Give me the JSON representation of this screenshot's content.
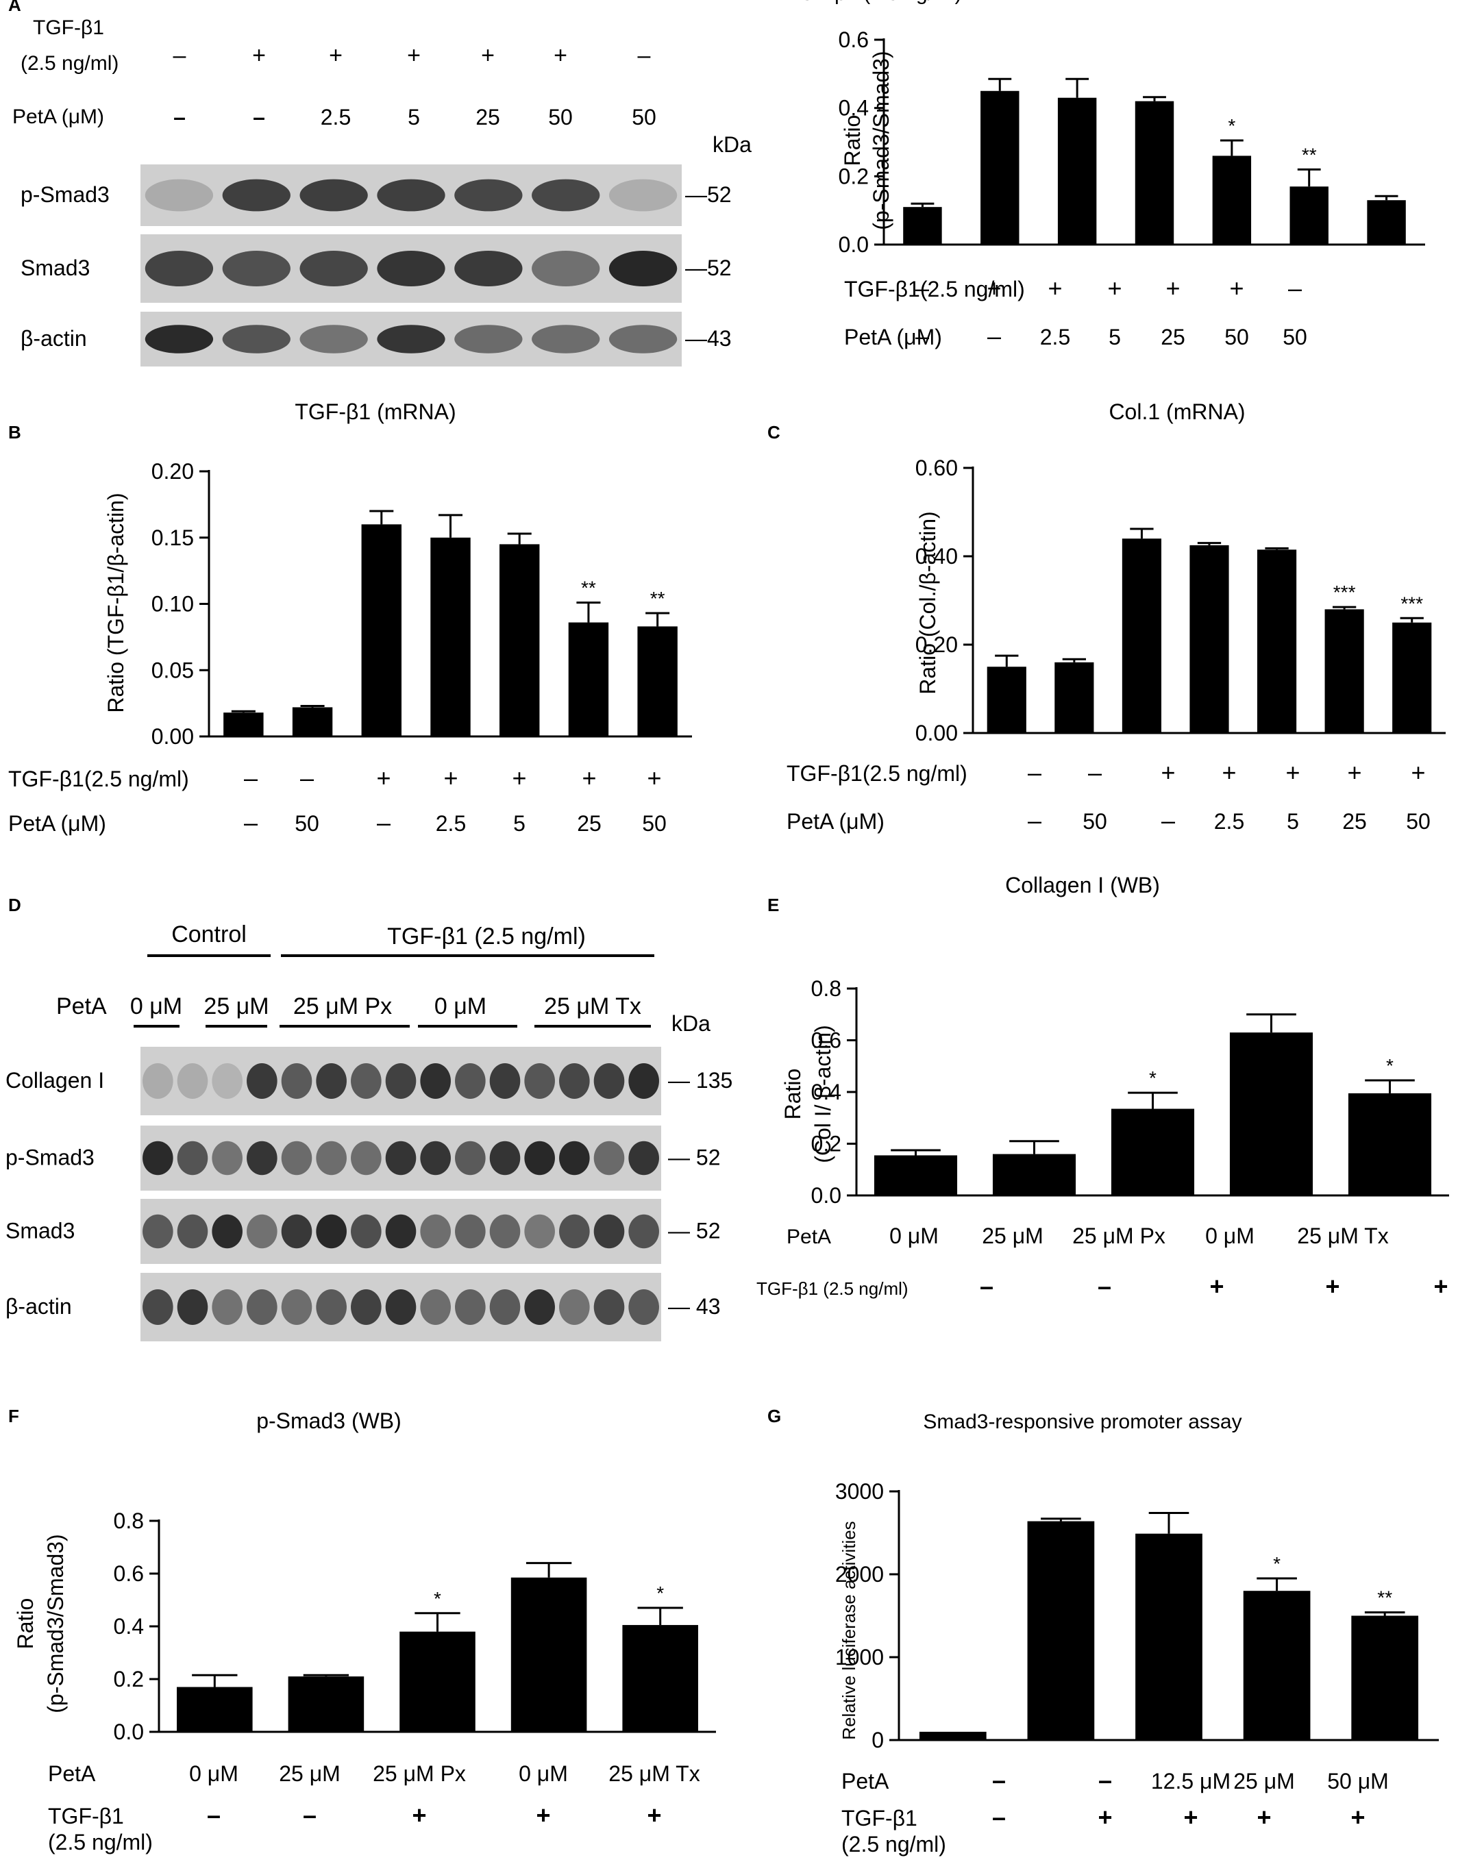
{
  "chart_data": [
    {
      "panel": "A",
      "type": "bar",
      "title": "",
      "ylabel": [
        "Ratio",
        "(p-Smad3/Smad3)"
      ],
      "ylim": [
        0,
        0.6
      ],
      "yticks": [
        "0.0",
        "0.2",
        "0.4",
        "0.6"
      ],
      "values": [
        0.11,
        0.45,
        0.43,
        0.42,
        0.26,
        0.17,
        0.13
      ],
      "errors": [
        0.01,
        0.035,
        0.055,
        0.012,
        0.045,
        0.05,
        0.012
      ],
      "significance": [
        "",
        "",
        "",
        "",
        "*",
        "**",
        ""
      ],
      "conditions": [
        {
          "label": "TGF-β1(2.5 ng/ml)",
          "values": [
            "–",
            "+",
            "+",
            "+",
            "+",
            "+",
            "–"
          ]
        },
        {
          "label": "PetA  (μM)",
          "values": [
            "–",
            "–",
            "2.5",
            "5",
            "25",
            "50",
            "50"
          ]
        }
      ]
    },
    {
      "panel": "B",
      "type": "bar",
      "title": "TGF-β1 (mRNA)",
      "ylabel": [
        "Ratio (TGF-β1/β-actin)"
      ],
      "ylim": [
        0,
        0.2
      ],
      "yticks": [
        "0.00",
        "0.05",
        "0.10",
        "0.15",
        "0.20"
      ],
      "values": [
        0.018,
        0.022,
        0.16,
        0.15,
        0.145,
        0.086,
        0.083
      ],
      "errors": [
        0.001,
        0.001,
        0.01,
        0.017,
        0.008,
        0.015,
        0.01
      ],
      "significance": [
        "",
        "",
        "",
        "",
        "",
        "**",
        "**"
      ],
      "conditions": [
        {
          "label": "TGF-β1(2.5 ng/ml)",
          "values": [
            "–",
            "–",
            "+",
            "+",
            "+",
            "+",
            "+"
          ]
        },
        {
          "label": "PetA  (μM)",
          "values": [
            "–",
            "50",
            "–",
            "2.5",
            "5",
            "25",
            "50"
          ]
        }
      ]
    },
    {
      "panel": "C",
      "type": "bar",
      "title": "Col.1 (mRNA)",
      "ylabel": [
        "Ratio (Col./β-actin)"
      ],
      "ylim": [
        0,
        0.6
      ],
      "yticks": [
        "0.00",
        "0.20",
        "0.40",
        "0.60"
      ],
      "values": [
        0.15,
        0.16,
        0.44,
        0.425,
        0.415,
        0.28,
        0.25
      ],
      "errors": [
        0.025,
        0.007,
        0.022,
        0.005,
        0.003,
        0.005,
        0.01
      ],
      "significance": [
        "",
        "",
        "",
        "",
        "",
        "***",
        "***"
      ],
      "conditions": [
        {
          "label": "TGF-β1(2.5 ng/ml)",
          "values": [
            "–",
            "–",
            "+",
            "+",
            "+",
            "+",
            "+"
          ]
        },
        {
          "label": "PetA  (μM)",
          "values": [
            "–",
            "50",
            "–",
            "2.5",
            "5",
            "25",
            "50"
          ]
        }
      ]
    },
    {
      "panel": "E",
      "type": "bar",
      "title": "Collagen I (WB)",
      "ylabel": [
        "Ratio",
        "(Col I/ β-actin)"
      ],
      "ylim": [
        0,
        0.8
      ],
      "yticks": [
        "0.0",
        "0.2",
        "0.4",
        "0.6",
        "0.8"
      ],
      "values": [
        0.155,
        0.16,
        0.335,
        0.63,
        0.395
      ],
      "errors": [
        0.02,
        0.05,
        0.062,
        0.07,
        0.05
      ],
      "significance": [
        "",
        "",
        "*",
        "",
        "*"
      ],
      "conditions": [
        {
          "label": "PetA",
          "values": [
            "0 μM",
            "25 μM",
            "25 μM Px",
            "0 μM",
            "25 μM Tx"
          ]
        },
        {
          "label": "TGF-β1 (2.5 ng/ml)",
          "values": [
            "–",
            "–",
            "+",
            "+",
            "+"
          ]
        }
      ]
    },
    {
      "panel": "F",
      "type": "bar",
      "title": "p-Smad3 (WB)",
      "ylabel": [
        "Ratio",
        "(p-Smad3/Smad3)"
      ],
      "ylim": [
        0,
        0.8
      ],
      "yticks": [
        "0.0",
        "0.2",
        "0.4",
        "0.6",
        "0.8"
      ],
      "values": [
        0.17,
        0.21,
        0.38,
        0.585,
        0.405
      ],
      "errors": [
        0.045,
        0.005,
        0.07,
        0.055,
        0.065
      ],
      "significance": [
        "",
        "",
        "*",
        "",
        "*"
      ],
      "conditions": [
        {
          "label": "PetA",
          "values": [
            "0 μM",
            "25 μM",
            "25 μM Px",
            "0 μM",
            "25 μM Tx"
          ]
        },
        {
          "label": "TGF-β1\n(2.5 ng/ml)",
          "values": [
            "–",
            "–",
            "+",
            "+",
            "+"
          ]
        }
      ]
    },
    {
      "panel": "G",
      "type": "bar",
      "title": "Smad3-responsive promoter assay",
      "ylabel": [
        "Relative luciferase activities"
      ],
      "ylim": [
        0,
        3000
      ],
      "yticks": [
        "0",
        "1000",
        "2000",
        "3000"
      ],
      "values": [
        100,
        2640,
        2490,
        1800,
        1500
      ],
      "errors": [
        0,
        30,
        250,
        150,
        40
      ],
      "significance": [
        "",
        "",
        "",
        "*",
        "**"
      ],
      "conditions": [
        {
          "label": "PetA",
          "values": [
            "–",
            "–",
            "12.5 μM",
            "25 μM",
            "50 μM"
          ]
        },
        {
          "label": "TGF-β1\n(2.5 ng/ml)",
          "values": [
            "–",
            "+",
            "+",
            "+",
            "+"
          ]
        }
      ]
    }
  ],
  "blots": [
    {
      "panel": "A",
      "header_rows": [
        {
          "label": "TGF-β1\n(2.5 ng/ml)",
          "values": [
            "–",
            "+",
            "+",
            "+",
            "+",
            "+",
            "–"
          ]
        },
        {
          "label": "PetA  (μM)",
          "values": [
            "–",
            "–",
            "2.5",
            "5",
            "25",
            "50",
            "50"
          ]
        }
      ],
      "kda_label": "kDa",
      "rows": [
        {
          "label": "p-Smad3",
          "kda": "52"
        },
        {
          "label": "Smad3",
          "kda": "52"
        },
        {
          "label": "β-actin",
          "kda": "43"
        }
      ]
    },
    {
      "panel": "D",
      "groups": [
        "Control",
        "TGF-β1 (2.5 ng/ml)"
      ],
      "peta_label": "PetA",
      "peta_values": [
        "0 μM",
        "25 μM",
        "25 μM Px",
        "0 μM",
        "25 μM Tx"
      ],
      "kda_label": "kDa",
      "rows": [
        {
          "label": "Collagen I",
          "kda": "135"
        },
        {
          "label": "p-Smad3",
          "kda": "52"
        },
        {
          "label": "Smad3",
          "kda": "52"
        },
        {
          "label": "β-actin",
          "kda": "43"
        }
      ]
    }
  ]
}
